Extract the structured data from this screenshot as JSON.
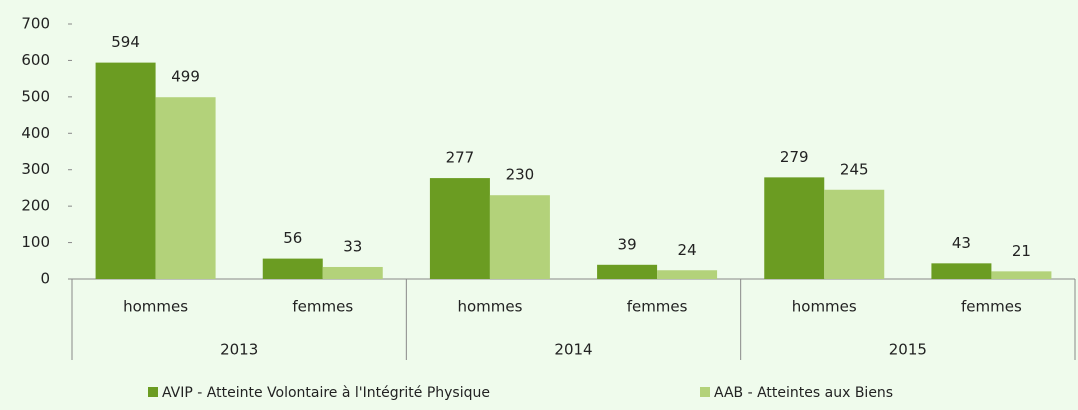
{
  "chart_data": {
    "type": "bar",
    "categories": [
      "hommes",
      "femmes",
      "hommes",
      "femmes",
      "hommes",
      "femmes"
    ],
    "groups": [
      "2013",
      "2014",
      "2015"
    ],
    "series": [
      {
        "name": "AVIP - Atteinte Volontaire à l'Intégrité Physique",
        "color": "#6b9c22",
        "values": [
          594,
          56,
          277,
          39,
          279,
          43
        ]
      },
      {
        "name": "AAB - Atteintes aux Biens",
        "color": "#b3d27a",
        "values": [
          499,
          33,
          230,
          24,
          245,
          21
        ]
      }
    ],
    "ylim": [
      0,
      700
    ],
    "yticks": [
      0,
      100,
      200,
      300,
      400,
      500,
      600,
      700
    ],
    "legend": "bottom"
  }
}
